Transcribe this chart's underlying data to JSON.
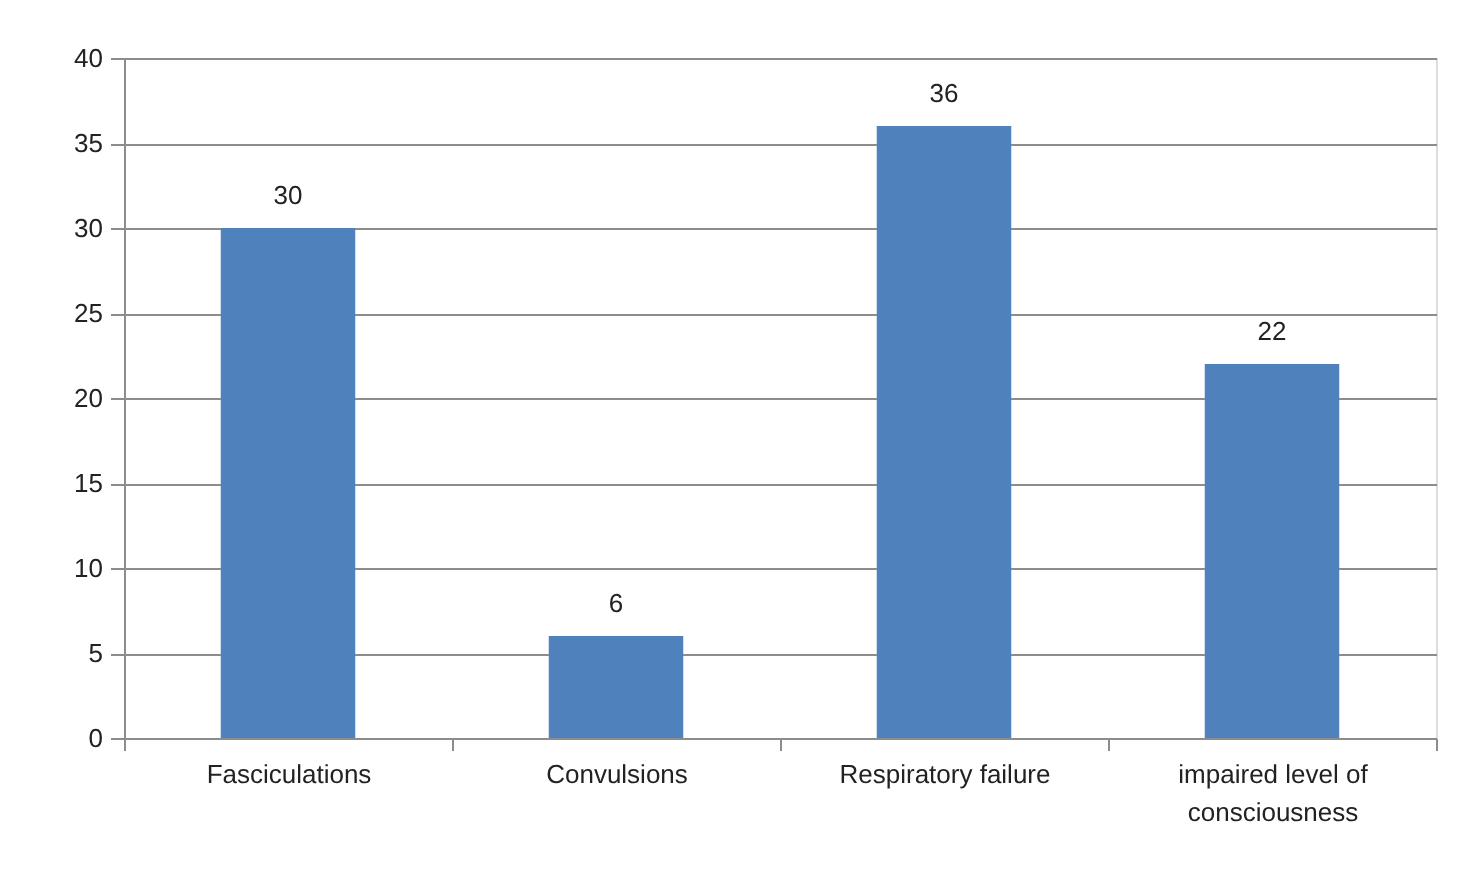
{
  "chart_data": {
    "type": "bar",
    "categories": [
      "Fasciculations",
      "Convulsions",
      "Respiratory failure",
      "impaired level of consciousness"
    ],
    "values": [
      30,
      6,
      36,
      22
    ],
    "color": "#4f81bd",
    "ylim": [
      0,
      40
    ],
    "yticks": [
      0,
      5,
      10,
      15,
      20,
      25,
      30,
      35,
      40
    ],
    "grid": "y",
    "data_labels": true
  }
}
